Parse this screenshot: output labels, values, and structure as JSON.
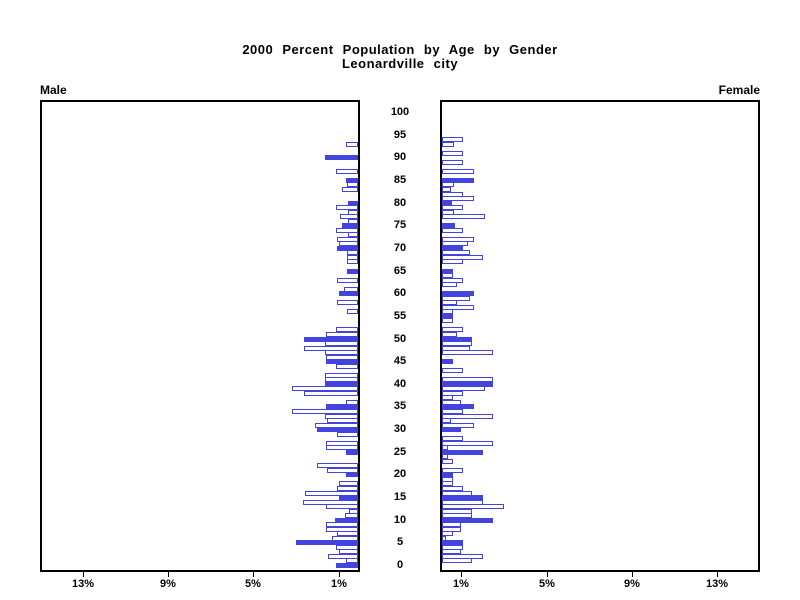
{
  "header": {
    "title_line1": "2000 Percent Population by Age by Gender",
    "title_line2": "Leonardville city"
  },
  "panels": {
    "male_label": "Male",
    "female_label": "Female"
  },
  "chart_data": {
    "type": "bar",
    "subtype": "population-pyramid",
    "title": "2000 Percent Population by Age by Gender",
    "subtitle": "Leonardville city",
    "unit": "percent of total population",
    "age_min": 0,
    "age_max": 100,
    "age_axis_ticks": [
      0,
      5,
      10,
      15,
      20,
      25,
      30,
      35,
      40,
      45,
      50,
      55,
      60,
      65,
      70,
      75,
      80,
      85,
      90,
      95,
      100
    ],
    "x_axis": {
      "max_percent": 15,
      "tick_percents": [
        1,
        5,
        9,
        13
      ],
      "tick_label_strings": [
        "1%",
        "5%",
        "9%",
        "13%"
      ],
      "male_axis_direction": "right-to-left",
      "female_axis_direction": "left-to-right"
    },
    "highlight_rule": "bars for ages divisible by 5 are drawn solid filled; other single-year ages are outlined only",
    "bar_color": "#4343e0",
    "series": [
      {
        "name": "Male",
        "values": [
          1.05,
          0.55,
          1.4,
          0.9,
          1.05,
          2.9,
          1.2,
          1.0,
          1.5,
          1.5,
          1.1,
          0.6,
          0.4,
          1.5,
          2.6,
          0.9,
          2.5,
          1.0,
          0.9,
          0,
          0.55,
          1.45,
          1.9,
          0,
          0,
          0.55,
          1.5,
          1.5,
          0,
          1.0,
          1.9,
          2.0,
          1.45,
          1.55,
          3.1,
          1.5,
          0.55,
          0,
          2.55,
          3.1,
          1.55,
          1.55,
          1.55,
          0,
          1.05,
          1.5,
          1.5,
          1.55,
          2.55,
          1.55,
          2.55,
          1.5,
          1.05,
          0,
          0,
          0,
          0.5,
          0,
          1.0,
          0,
          0.9,
          0.65,
          0,
          1.0,
          0,
          0.5,
          0,
          0.5,
          0.5,
          0.5,
          1.0,
          0.9,
          1.0,
          0.45,
          1.05,
          0.75,
          0.45,
          0.85,
          0.45,
          1.05,
          0.45,
          0,
          0,
          0.75,
          0.5,
          0.55,
          0,
          1.05,
          0,
          0,
          1.55,
          0,
          0,
          0.55,
          0,
          0,
          0,
          0,
          0,
          0,
          0
        ]
      },
      {
        "name": "Female",
        "values": [
          0,
          1.4,
          1.9,
          0.9,
          1.0,
          1.0,
          0.2,
          0.5,
          0.9,
          0.9,
          2.4,
          1.4,
          1.4,
          2.9,
          1.9,
          1.9,
          1.4,
          1.0,
          0.5,
          0.5,
          0.5,
          1.0,
          0,
          0.5,
          0.3,
          1.9,
          0.3,
          2.4,
          1.0,
          0,
          0.9,
          1.5,
          0.4,
          2.4,
          1.0,
          1.5,
          0.9,
          0.5,
          1.0,
          2.0,
          2.4,
          2.4,
          0,
          1.0,
          0,
          0.5,
          0,
          2.4,
          1.3,
          1.4,
          1.4,
          0.7,
          1.0,
          0,
          0.5,
          0.5,
          0.5,
          1.5,
          0.7,
          1.3,
          1.5,
          0,
          0.7,
          1.0,
          0.5,
          0.5,
          0,
          1.0,
          1.9,
          1.3,
          1.0,
          1.2,
          1.5,
          0,
          1.0,
          0.6,
          0,
          2.0,
          0.55,
          1.0,
          0.45,
          1.5,
          1.0,
          0.4,
          0.55,
          1.5,
          0,
          1.5,
          0,
          1.0,
          0,
          1.0,
          0,
          0.55,
          1.0,
          0,
          0,
          0,
          0,
          0,
          0
        ]
      }
    ]
  }
}
